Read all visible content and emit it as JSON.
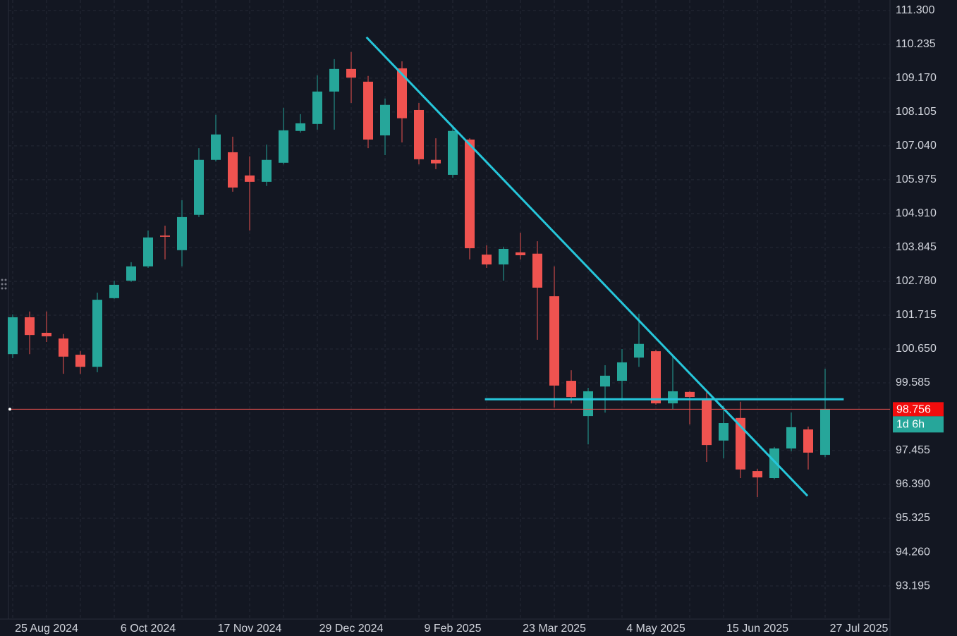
{
  "chart_data": {
    "type": "candlestick",
    "categories": [
      null,
      null,
      "25 Aug 2024",
      null,
      null,
      null,
      null,
      null,
      "6 Oct 2024",
      null,
      null,
      null,
      null,
      null,
      "17 Nov 2024",
      null,
      null,
      null,
      null,
      null,
      "29 Dec 2024",
      null,
      null,
      null,
      null,
      null,
      "9 Feb 2025",
      null,
      null,
      null,
      null,
      null,
      "23 Mar 2025",
      null,
      null,
      null,
      null,
      null,
      "4 May 2025",
      null,
      null,
      null,
      null,
      null,
      "15 Jun 2025",
      null,
      null,
      null,
      null,
      null,
      "27 Jul 2025"
    ],
    "open": [
      100.49,
      101.65,
      101.16,
      100.98,
      100.47,
      100.09,
      102.25,
      102.8,
      103.25,
      104.22,
      103.76,
      104.87,
      106.6,
      106.84,
      106.11,
      105.91,
      106.51,
      107.51,
      107.73,
      108.75,
      109.46,
      109.06,
      107.37,
      109.48,
      108.17,
      106.6,
      106.13,
      107.24,
      103.62,
      103.31,
      103.69,
      103.65,
      102.31,
      99.65,
      98.54,
      99.47,
      99.65,
      100.38,
      100.58,
      98.94,
      99.3,
      99.05,
      97.77,
      98.48,
      96.81,
      96.59,
      97.52,
      98.12,
      97.32,
      null,
      null
    ],
    "high": [
      101.74,
      101.83,
      101.83,
      101.12,
      100.58,
      102.42,
      102.8,
      103.38,
      104.38,
      104.53,
      105.33,
      106.97,
      108.02,
      107.33,
      106.71,
      107.08,
      108.24,
      108.04,
      109.26,
      109.77,
      109.99,
      109.24,
      108.53,
      109.7,
      108.39,
      107.28,
      107.68,
      107.28,
      103.91,
      103.87,
      104.31,
      104.04,
      103.25,
      99.98,
      99.43,
      100.14,
      100.65,
      101.76,
      100.63,
      100.43,
      99.32,
      99.32,
      98.87,
      98.99,
      96.88,
      97.57,
      98.65,
      98.21,
      100.03,
      null,
      null
    ],
    "low": [
      100.36,
      100.49,
      100.87,
      99.87,
      99.87,
      99.92,
      102.23,
      102.76,
      103.2,
      103.47,
      103.25,
      104.8,
      106.55,
      105.6,
      104.38,
      105.78,
      106.46,
      107.46,
      107.55,
      107.55,
      108.39,
      106.97,
      106.75,
      107.15,
      106.46,
      106.31,
      106.04,
      103.47,
      103.2,
      102.8,
      103.47,
      100.94,
      98.81,
      98.94,
      97.65,
      98.65,
      99.03,
      100.09,
      98.9,
      98.76,
      98.28,
      97.1,
      97.21,
      96.59,
      95.99,
      96.55,
      97.43,
      96.86,
      97.25,
      null,
      null
    ],
    "close": [
      101.65,
      101.09,
      101.05,
      100.41,
      100.09,
      102.2,
      102.67,
      103.25,
      104.16,
      104.18,
      104.8,
      106.6,
      107.4,
      105.73,
      105.91,
      106.6,
      107.53,
      107.75,
      108.75,
      109.46,
      109.19,
      107.24,
      108.33,
      107.91,
      106.62,
      106.49,
      107.51,
      103.82,
      103.31,
      103.8,
      103.6,
      102.58,
      99.5,
      99.14,
      99.32,
      99.81,
      100.23,
      100.81,
      98.94,
      99.32,
      99.14,
      97.63,
      98.32,
      96.86,
      96.61,
      97.52,
      98.19,
      97.39,
      98.756,
      null,
      null
    ],
    "up_color": "#26a69a",
    "down_color": "#ef5350",
    "ylim": [
      92.22,
      111.63
    ],
    "yticks": [
      {
        "value": 111.3,
        "label": "111.300"
      },
      110.235,
      {
        "value": 109.17,
        "label": "109.170"
      },
      108.105,
      {
        "value": 107.04,
        "label": "107.040"
      },
      105.975,
      {
        "value": 104.91,
        "label": "104.910"
      },
      103.845,
      {
        "value": 102.78,
        "label": "102.780"
      },
      101.715,
      {
        "value": 100.65,
        "label": "100.650"
      },
      99.585,
      97.455,
      {
        "value": 96.39,
        "label": "96.390"
      },
      95.325,
      {
        "value": 94.26,
        "label": "94.260"
      },
      93.195
    ],
    "grid": true,
    "last_price": 98.756,
    "countdown": "1d 6h",
    "lines": [
      {
        "from": [
          20.9,
          110.46
        ],
        "to": [
          46.96,
          96.03
        ],
        "color": "#26c6da"
      },
      {
        "from": [
          27.9,
          99.07
        ],
        "to": [
          49.1,
          99.07
        ],
        "color": "#26c6da"
      }
    ]
  }
}
